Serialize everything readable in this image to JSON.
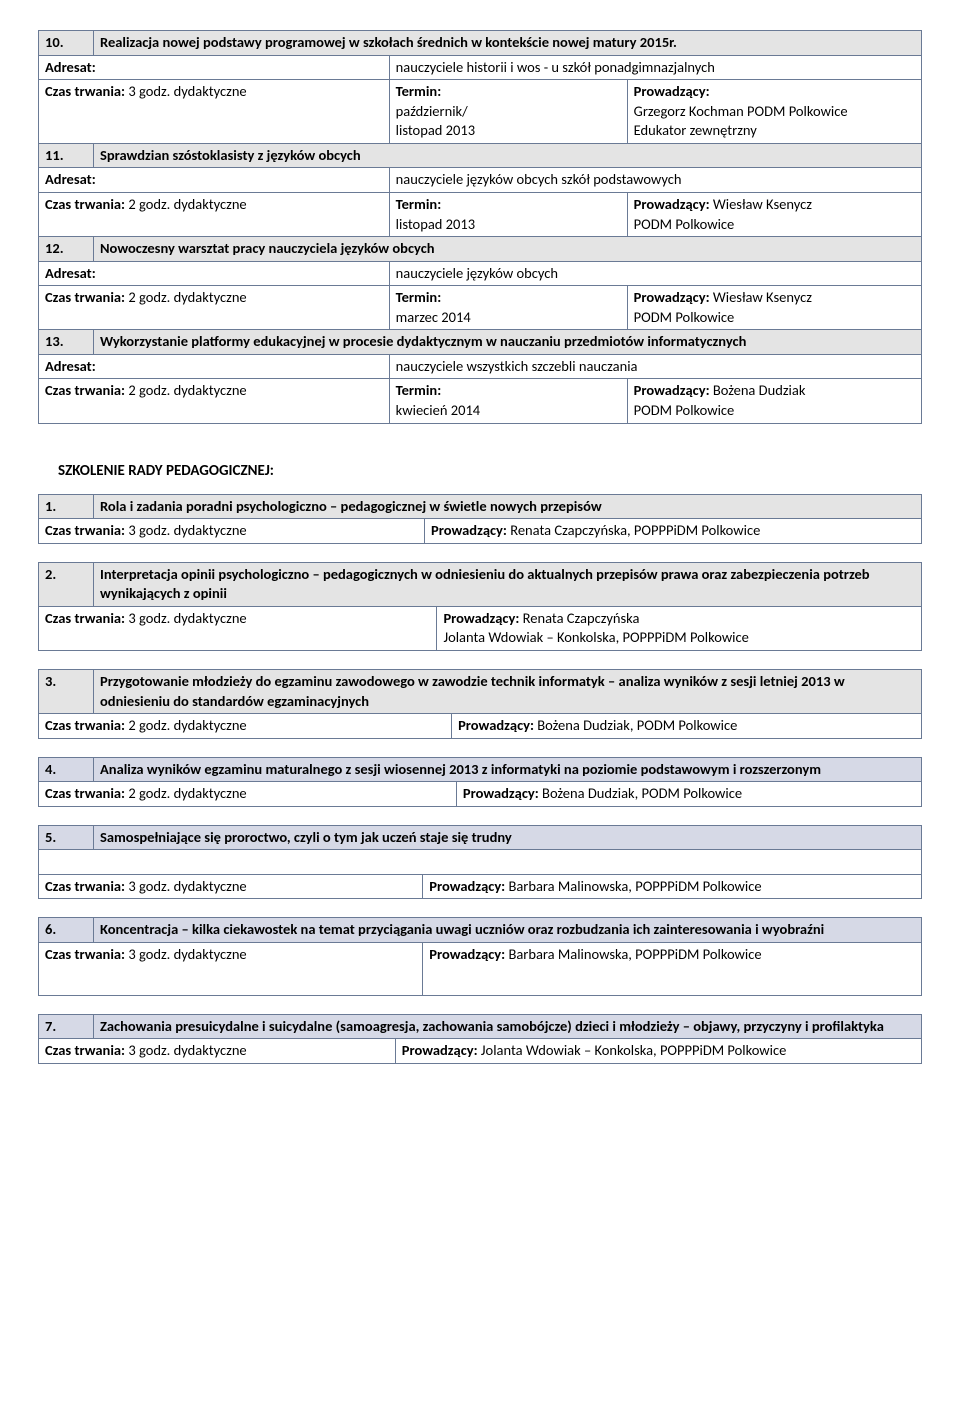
{
  "labels": {
    "adresat": "Adresat:",
    "czas": "Czas trwania:",
    "termin": "Termin:",
    "prow": "Prowadzący:"
  },
  "section1": [
    {
      "num": "10.",
      "title": "Realizacja nowej podstawy programowej w szkołach średnich w kontekście nowej matury 2015r.",
      "adresat": "nauczyciele historii i wos - u szkół ponadgimnazjalnych",
      "czas": "3 godz. dydaktyczne",
      "termin": "październik/ listopad 2013",
      "prow": "Grzegorz Kochman PODM Polkowice Edukator zewnętrzny"
    },
    {
      "num": "11.",
      "title": "Sprawdzian szóstoklasisty z języków obcych",
      "adresat": "nauczyciele języków obcych szkół podstawowych",
      "czas": "2 godz. dydaktyczne",
      "termin": "listopad 2013",
      "prow": "Wiesław Ksenycz PODM Polkowice",
      "prow_inline": true
    },
    {
      "num": "12.",
      "title": "Nowoczesny warsztat pracy nauczyciela języków obcych",
      "adresat": "nauczyciele języków obcych",
      "czas": "2 godz. dydaktyczne",
      "termin": "marzec 2014",
      "prow": "Wiesław Ksenycz PODM Polkowice",
      "prow_inline": true
    },
    {
      "num": "13.",
      "title": "Wykorzystanie platformy edukacyjnej w procesie dydaktycznym  w nauczaniu przedmiotów informatycznych",
      "adresat": "nauczyciele wszystkich szczebli nauczania",
      "czas": "2 godz. dydaktyczne",
      "termin": "kwiecień 2014",
      "prow": "Bożena Dudziak PODM Polkowice",
      "prow_inline": true
    }
  ],
  "section2_title": "SZKOLENIE RADY PEDAGOGICZNEJ:",
  "section2": [
    {
      "num": "1.",
      "hdr_class": "hdr",
      "title": "Rola i zadania poradni psychologiczno – pedagogicznej w świetle nowych przepisów",
      "czas": "3 godz. dydaktyczne",
      "prow": "Renata Czapczyńska, POPPPiDM Polkowice"
    },
    {
      "num": "2.",
      "hdr_class": "hdr",
      "title": "Interpretacja opinii psychologiczno – pedagogicznych w odniesieniu do aktualnych przepisów prawa oraz zabezpieczenia potrzeb wynikających z opinii",
      "czas": "3 godz. dydaktyczne",
      "prow": "Renata Czapczyńska\nJolanta Wdowiak – Konkolska, POPPPiDM Polkowice"
    },
    {
      "num": "3.",
      "hdr_class": "hdr",
      "title": "Przygotowanie młodzieży do egzaminu zawodowego w zawodzie technik informatyk – analiza wyników z sesji letniej 2013 w odniesieniu do standardów egzaminacyjnych",
      "czas": "2 godz. dydaktyczne",
      "prow": "Bożena Dudziak, PODM Polkowice"
    },
    {
      "num": "4.",
      "hdr_class": "hdr-blue",
      "title": "Analiza wyników egzaminu maturalnego z sesji wiosennej 2013 z informatyki na poziomie podstawowym i rozszerzonym",
      "czas": "2 godz. dydaktyczne",
      "prow": "Bożena Dudziak, PODM Polkowice"
    },
    {
      "num": "5.",
      "hdr_class": "hdr-blue",
      "title": "Samospełniające się proroctwo, czyli o tym jak uczeń staje się trudny",
      "czas": "3 godz. dydaktyczne",
      "prow": "Barbara Malinowska, POPPPiDM Polkowice",
      "blank_row": true
    },
    {
      "num": "6.",
      "hdr_class": "hdr-blue",
      "title": "Koncentracja – kilka ciekawostek na temat przyciągania uwagi uczniów oraz rozbudzania ich zainteresowania i wyobraźni",
      "czas": "3 godz. dydaktyczne",
      "prow": "Barbara Malinowska, POPPPiDM Polkowice",
      "tall": true
    },
    {
      "num": "7.",
      "hdr_class": "hdr-blue",
      "title": "Zachowania presuicydalne i suicydalne (samoagresja, zachowania samobójcze) dzieci i młodzieży – objawy, przyczyny i profilaktyka",
      "czas": "3 godz. dydaktyczne",
      "prow": "Jolanta Wdowiak – Konkolska, POPPPiDM Polkowice"
    }
  ]
}
